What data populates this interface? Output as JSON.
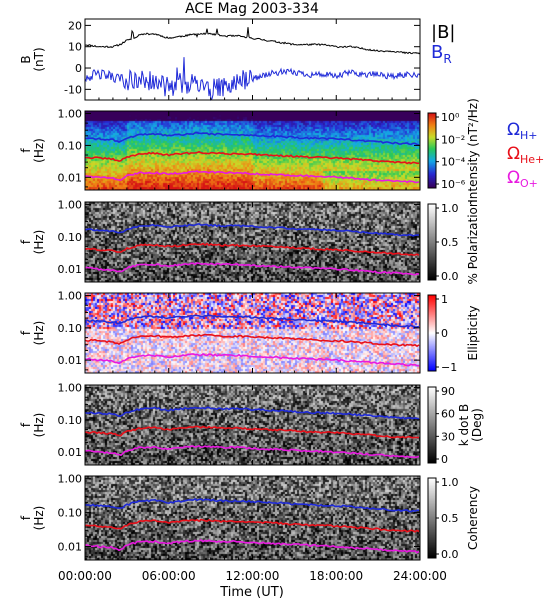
{
  "chart_data": {
    "type": "spectrogram",
    "title": "ACE Mag 2003-334",
    "xlabel": "Time (UT)",
    "xlim": [
      0,
      24
    ],
    "x_ticks": [
      "00:00:00",
      "06:00:00",
      "12:00:00",
      "18:00:00",
      "24:00:00"
    ],
    "panels": [
      {
        "id": "field",
        "type": "line",
        "ylabel_top": "B",
        "ylabel_bottom": "(nT)",
        "ylim": [
          -15,
          23
        ],
        "y_ticks": [
          "20",
          "10",
          "0",
          "-10"
        ],
        "legend": [
          {
            "label": "|B|",
            "color": "#000000"
          },
          {
            "label": "B",
            "sub": "R",
            "color": "#1f2ad8"
          }
        ],
        "series": [
          {
            "name": "|B|",
            "color": "#000000",
            "x": [
              0,
              1,
              2,
              2.5,
              3,
              3.5,
              4,
              5,
              6,
              7,
              8,
              9,
              10,
              11,
              12,
              13,
              14,
              15,
              16,
              17,
              18,
              19,
              20,
              21,
              22,
              23,
              24
            ],
            "y": [
              11,
              10,
              10,
              11,
              13,
              14,
              16,
              16,
              14,
              15,
              16,
              16,
              15,
              15,
              14,
              13,
              12,
              11,
              11,
              11,
              10,
              10,
              9,
              8,
              8,
              7,
              7
            ]
          },
          {
            "name": "B_R",
            "color": "#1f2ad8",
            "x": [
              0,
              1,
              2,
              3,
              4,
              5,
              6,
              7,
              8,
              9,
              10,
              11,
              12,
              13,
              14,
              15,
              16,
              17,
              18,
              19,
              20,
              21,
              22,
              23,
              24
            ],
            "y": [
              -4,
              -3,
              -4,
              -6,
              -5,
              -7,
              -9,
              -7,
              -8,
              -10,
              -9,
              -6,
              -5,
              -3,
              -2,
              -2,
              -3,
              -3,
              -4,
              -2,
              -3,
              -3,
              -4,
              -3,
              -3
            ]
          }
        ]
      },
      {
        "id": "intensity",
        "ylabel_top": "f",
        "ylabel_bottom": "(Hz)",
        "y_ticks": [
          "1.00",
          "0.10",
          "0.01"
        ],
        "colorbar_label": "Intensity (nT²/Hz)",
        "colorbar_ticks": [
          "10⁰",
          "10⁻²",
          "10⁻⁴",
          "10⁻⁶"
        ],
        "colormap": "rainbow",
        "annotations": [
          {
            "symbol": "Ω",
            "sub": "H+",
            "color": "#1f2ad8"
          },
          {
            "symbol": "Ω",
            "sub": "He+",
            "color": "#e8101a"
          },
          {
            "symbol": "Ω",
            "sub": "O+",
            "color": "#e81ae0"
          }
        ]
      },
      {
        "id": "polarization",
        "ylabel_top": "f",
        "ylabel_bottom": "(Hz)",
        "y_ticks": [
          "1.00",
          "0.10",
          "0.01"
        ],
        "colorbar_label": "% Polarization",
        "colorbar_ticks": [
          "1.0",
          "0.5",
          "0.0"
        ],
        "colormap": "gray"
      },
      {
        "id": "ellipticity",
        "ylabel_top": "f",
        "ylabel_bottom": "(Hz)",
        "y_ticks": [
          "1.00",
          "0.10",
          "0.01"
        ],
        "colorbar_label": "Ellipticity",
        "colorbar_ticks": [
          "1",
          "0",
          "−1"
        ],
        "colormap": "bwr"
      },
      {
        "id": "kdotb",
        "ylabel_top": "f",
        "ylabel_bottom": "(Hz)",
        "y_ticks": [
          "1.00",
          "0.10",
          "0.01"
        ],
        "colorbar_label": "k dot B (Deg)",
        "colorbar_label_lines": [
          "k dot B",
          "(Deg)"
        ],
        "colorbar_ticks": [
          "90",
          "60",
          "30",
          "0"
        ],
        "colormap": "gray"
      },
      {
        "id": "coherency",
        "ylabel_top": "f",
        "ylabel_bottom": "(Hz)",
        "y_ticks": [
          "1.00",
          "0.10",
          "0.01"
        ],
        "colorbar_label": "Coherency",
        "colorbar_ticks": [
          "1.0",
          "0.5",
          "0.0"
        ],
        "colormap": "gray"
      }
    ],
    "gyro_lines": [
      {
        "name": "H+",
        "color": "#1f2ad8",
        "x": [
          0,
          1,
          2,
          2.5,
          3,
          4,
          5,
          6,
          7,
          8,
          9,
          10,
          11,
          12,
          14,
          16,
          18,
          20,
          22,
          24
        ],
        "f": [
          0.17,
          0.16,
          0.15,
          0.13,
          0.17,
          0.22,
          0.23,
          0.2,
          0.22,
          0.24,
          0.23,
          0.22,
          0.22,
          0.21,
          0.19,
          0.17,
          0.16,
          0.14,
          0.12,
          0.11
        ]
      },
      {
        "name": "He+",
        "color": "#e8101a",
        "x": [
          0,
          1,
          2,
          2.5,
          3,
          4,
          5,
          6,
          7,
          8,
          9,
          10,
          11,
          12,
          14,
          16,
          18,
          20,
          22,
          24
        ],
        "f": [
          0.042,
          0.04,
          0.037,
          0.032,
          0.043,
          0.055,
          0.057,
          0.05,
          0.055,
          0.06,
          0.058,
          0.055,
          0.055,
          0.053,
          0.048,
          0.043,
          0.04,
          0.035,
          0.03,
          0.028
        ]
      },
      {
        "name": "O+",
        "color": "#e81ae0",
        "x": [
          0,
          1,
          2,
          2.5,
          3,
          4,
          5,
          6,
          7,
          8,
          9,
          10,
          11,
          12,
          14,
          16,
          18,
          20,
          22,
          24
        ],
        "f": [
          0.011,
          0.01,
          0.0093,
          0.008,
          0.011,
          0.014,
          0.014,
          0.0125,
          0.014,
          0.015,
          0.0145,
          0.014,
          0.014,
          0.013,
          0.012,
          0.011,
          0.01,
          0.0088,
          0.0076,
          0.0069
        ]
      }
    ]
  }
}
